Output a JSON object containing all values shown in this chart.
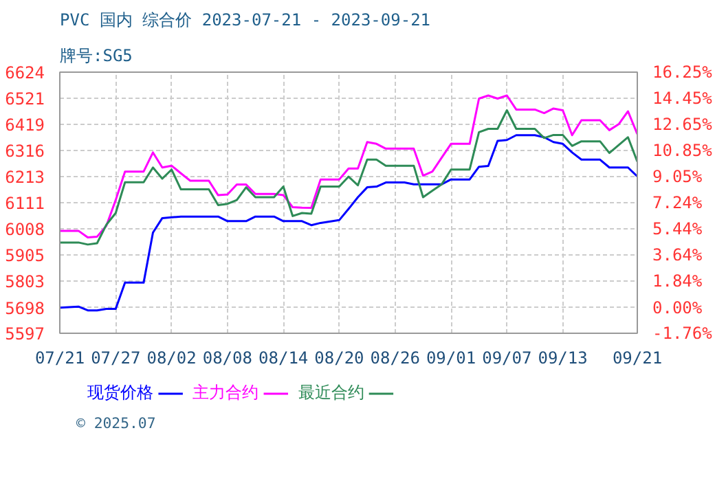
{
  "chart_data": {
    "type": "line",
    "title": "PVC 国内 综合价 2023-07-21 - 2023-09-21",
    "subtitle": "牌号:SG5",
    "x": [
      "2023-07-21",
      "2023-07-23",
      "2023-07-24",
      "2023-07-25",
      "2023-07-26",
      "2023-07-27",
      "2023-07-28",
      "2023-07-30",
      "2023-07-31",
      "2023-08-01",
      "2023-08-02",
      "2023-08-03",
      "2023-08-04",
      "2023-08-06",
      "2023-08-07",
      "2023-08-08",
      "2023-08-09",
      "2023-08-10",
      "2023-08-11",
      "2023-08-13",
      "2023-08-14",
      "2023-08-15",
      "2023-08-16",
      "2023-08-17",
      "2023-08-18",
      "2023-08-20",
      "2023-08-21",
      "2023-08-22",
      "2023-08-23",
      "2023-08-24",
      "2023-08-25",
      "2023-08-27",
      "2023-08-28",
      "2023-08-29",
      "2023-08-30",
      "2023-08-31",
      "2023-09-01",
      "2023-09-03",
      "2023-09-04",
      "2023-09-05",
      "2023-09-06",
      "2023-09-07",
      "2023-09-08",
      "2023-09-10",
      "2023-09-11",
      "2023-09-12",
      "2023-09-13",
      "2023-09-14",
      "2023-09-15",
      "2023-09-17",
      "2023-09-18",
      "2023-09-19",
      "2023-09-20",
      "2023-09-21"
    ],
    "series": [
      {
        "name": "现货价格",
        "color": "#0000ff",
        "values": [
          5698,
          5702,
          5687,
          5687,
          5693,
          5693,
          5796,
          5796,
          5993,
          6050,
          6053,
          6056,
          6056,
          6056,
          6056,
          6038,
          6038,
          6038,
          6056,
          6056,
          6038,
          6038,
          6038,
          6022,
          6031,
          6042,
          6086,
          6132,
          6171,
          6174,
          6190,
          6190,
          6183,
          6183,
          6183,
          6183,
          6202,
          6202,
          6252,
          6255,
          6354,
          6357,
          6376,
          6376,
          6368,
          6349,
          6342,
          6308,
          6280,
          6280,
          6249,
          6249,
          6249,
          6214
        ]
      },
      {
        "name": "主力合约",
        "color": "#ff00ff",
        "values": [
          6000,
          6000,
          5974,
          5977,
          6020,
          6121,
          6233,
          6233,
          6308,
          6249,
          6256,
          6226,
          6197,
          6197,
          6140,
          6143,
          6182,
          6182,
          6145,
          6145,
          6140,
          6093,
          6091,
          6090,
          6202,
          6202,
          6245,
          6245,
          6349,
          6342,
          6323,
          6323,
          6323,
          6217,
          6233,
          6288,
          6342,
          6342,
          6520,
          6532,
          6520,
          6532,
          6477,
          6477,
          6463,
          6481,
          6474,
          6376,
          6435,
          6435,
          6396,
          6419,
          6470,
          6380
        ]
      },
      {
        "name": "最近合约",
        "color": "#2e8b57",
        "values": [
          5954,
          5954,
          5946,
          5951,
          6024,
          6070,
          6191,
          6191,
          6249,
          6205,
          6241,
          6163,
          6163,
          6163,
          6101,
          6106,
          6121,
          6171,
          6132,
          6132,
          6174,
          6058,
          6070,
          6067,
          6174,
          6174,
          6213,
          6179,
          6280,
          6280,
          6256,
          6256,
          6256,
          6132,
          6158,
          6183,
          6241,
          6241,
          6388,
          6401,
          6401,
          6474,
          6401,
          6401,
          6365,
          6377,
          6377,
          6334,
          6352,
          6352,
          6306,
          6337,
          6368,
          6272
        ]
      }
    ],
    "xlim": [
      "2023-07-21",
      "2023-09-21"
    ],
    "xticks": [
      {
        "value": "2023-07-21",
        "label": "07/21"
      },
      {
        "value": "2023-07-27",
        "label": "07/27"
      },
      {
        "value": "2023-08-02",
        "label": "08/02"
      },
      {
        "value": "2023-08-08",
        "label": "08/08"
      },
      {
        "value": "2023-08-14",
        "label": "08/14"
      },
      {
        "value": "2023-08-20",
        "label": "08/20"
      },
      {
        "value": "2023-08-26",
        "label": "08/26"
      },
      {
        "value": "2023-09-01",
        "label": "09/01"
      },
      {
        "value": "2023-09-07",
        "label": "09/07"
      },
      {
        "value": "2023-09-13",
        "label": "09/13"
      },
      {
        "value": "2023-09-21",
        "label": "09/21"
      }
    ],
    "ylim": [
      5597,
      6624
    ],
    "yticks": [
      5597,
      5698,
      5803,
      5905,
      6008,
      6111,
      6213,
      6316,
      6419,
      6521,
      6624
    ],
    "y2lim": [
      -1.76,
      16.25
    ],
    "y2ticks": [
      {
        "value": -1.76,
        "label": "-1.76%"
      },
      {
        "value": 0,
        "label": "0.00%"
      },
      {
        "value": 1.84,
        "label": "1.84%"
      },
      {
        "value": 3.64,
        "label": "3.64%"
      },
      {
        "value": 5.44,
        "label": "5.44%"
      },
      {
        "value": 7.24,
        "label": "7.24%"
      },
      {
        "value": 9.05,
        "label": "9.05%"
      },
      {
        "value": 10.85,
        "label": "10.85%"
      },
      {
        "value": 12.65,
        "label": "12.65%"
      },
      {
        "value": 14.45,
        "label": "14.45%"
      },
      {
        "value": 16.25,
        "label": "16.25%"
      }
    ],
    "grid": true,
    "legend": "bottom",
    "annotations": [
      "© 2025.07"
    ]
  }
}
